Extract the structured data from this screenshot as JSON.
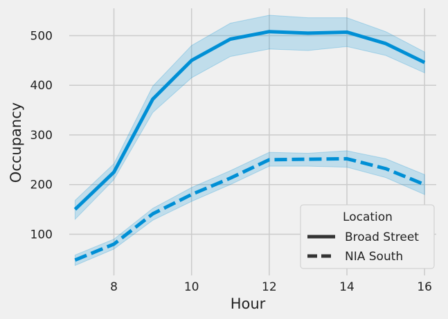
{
  "chart_data": {
    "type": "line",
    "xlabel": "Hour",
    "ylabel": "Occupancy",
    "xlim": [
      6.85,
      16.3
    ],
    "ylim": [
      17,
      555
    ],
    "x_ticks": [
      8,
      10,
      12,
      14,
      16
    ],
    "y_ticks": [
      100,
      200,
      300,
      400,
      500
    ],
    "grid": true,
    "legend": {
      "title": "Location",
      "placement": "lower-right"
    },
    "colors": {
      "line": "#008fd5",
      "band": "#008fd5",
      "background": "#f0f0f0",
      "grid": "#cbcbcb",
      "legend_line": "#333333"
    },
    "x": [
      7,
      8,
      9,
      10,
      11,
      12,
      13,
      14,
      15,
      16
    ],
    "series": [
      {
        "name": "Broad Street",
        "style": "solid",
        "values": [
          150,
          225,
          372,
          450,
          493,
          508,
          505,
          507,
          484,
          446
        ],
        "ci_lower": [
          130,
          210,
          345,
          415,
          458,
          473,
          470,
          478,
          460,
          425
        ],
        "ci_upper": [
          168,
          242,
          398,
          480,
          525,
          541,
          536,
          536,
          508,
          467
        ]
      },
      {
        "name": "NIA South",
        "style": "dashed",
        "values": [
          48,
          80,
          141,
          180,
          213,
          250,
          251,
          252,
          232,
          200
        ],
        "ci_lower": [
          37,
          70,
          128,
          166,
          200,
          237,
          237,
          235,
          214,
          180
        ],
        "ci_upper": [
          58,
          90,
          152,
          194,
          228,
          265,
          263,
          268,
          252,
          220
        ]
      }
    ]
  }
}
